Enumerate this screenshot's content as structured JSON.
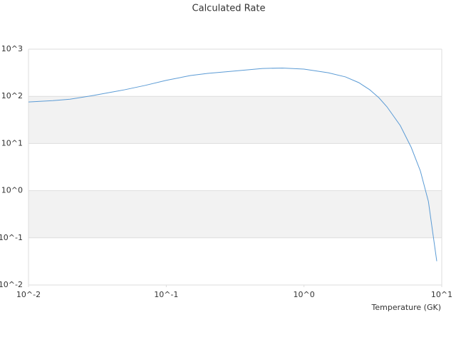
{
  "chart_data": {
    "type": "line",
    "title": "Calculated Rate",
    "x_label": "Temperature (GK)",
    "xscale": "log",
    "yscale": "log",
    "grid": true,
    "alternating_bands": true,
    "xlim": [
      0.01,
      10
    ],
    "ylim": [
      0.01,
      1000
    ],
    "xticks": [
      {
        "value": 0.01,
        "label": "10^-2"
      },
      {
        "value": 0.1,
        "label": "10^-1"
      },
      {
        "value": 1,
        "label": "10^0"
      },
      {
        "value": 10,
        "label": "10^1"
      }
    ],
    "yticks": [
      {
        "value": 0.01,
        "label": "10^-2"
      },
      {
        "value": 0.1,
        "label": "10^-1"
      },
      {
        "value": 1,
        "label": "10^0"
      },
      {
        "value": 10,
        "label": "10^1"
      },
      {
        "value": 100,
        "label": "10^2"
      },
      {
        "value": 1000,
        "label": "10^3"
      }
    ],
    "x": [
      0.01,
      0.015,
      0.02,
      0.03,
      0.05,
      0.07,
      0.1,
      0.15,
      0.2,
      0.3,
      0.5,
      0.7,
      1,
      1.5,
      2,
      2.5,
      3,
      3.5,
      4,
      5,
      6,
      7,
      8,
      9.2
    ],
    "series": [
      {
        "color": "#5b9bd5",
        "values": [
          76,
          81,
          87,
          105,
          138,
          170,
          218,
          276,
          307,
          340,
          390,
          398,
          378,
          316,
          258,
          195,
          138,
          93,
          60,
          24,
          8.3,
          2.6,
          0.59,
          0.032
        ]
      }
    ]
  }
}
